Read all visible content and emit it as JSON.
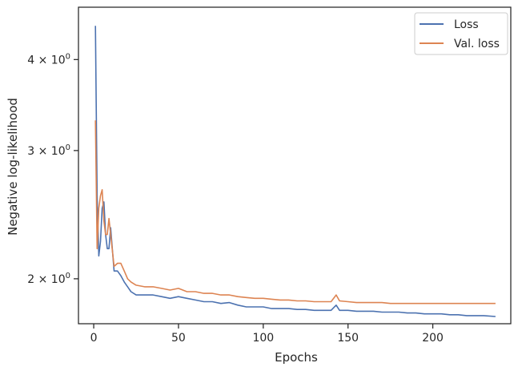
{
  "chart_data": {
    "type": "line",
    "xlabel": "Epochs",
    "ylabel": "Negative log-likelihood",
    "xlim": [
      -9,
      246
    ],
    "ylim": [
      1.735,
      4.72
    ],
    "y_scale": "log",
    "x_ticks": [
      0,
      50,
      100,
      150,
      200
    ],
    "x_tick_labels": [
      "0",
      "50",
      "100",
      "150",
      "200"
    ],
    "y_ticks": [
      {
        "value": 4,
        "mantissa": "4",
        "base": "10",
        "exponent": "0"
      },
      {
        "value": 3,
        "mantissa": "3",
        "base": "10",
        "exponent": "0"
      },
      {
        "value": 2,
        "mantissa": "2",
        "base": "10",
        "exponent": "0"
      }
    ],
    "grid": false,
    "legend_position": "top-right",
    "colors": {
      "loss": "#4c72b0",
      "val_loss": "#dd8452",
      "axes": "#262626"
    },
    "series": [
      {
        "name": "Loss",
        "color": "#4c72b0",
        "x": [
          1,
          2,
          3,
          4,
          5,
          6,
          7,
          8,
          9,
          10,
          12,
          14,
          16,
          18,
          20,
          22,
          25,
          30,
          35,
          40,
          45,
          50,
          55,
          60,
          65,
          70,
          75,
          80,
          85,
          90,
          95,
          100,
          105,
          110,
          115,
          120,
          125,
          130,
          135,
          140,
          143,
          145,
          150,
          155,
          160,
          165,
          170,
          175,
          180,
          185,
          190,
          195,
          200,
          205,
          210,
          215,
          220,
          225,
          230,
          237
        ],
        "y": [
          4.45,
          2.6,
          2.15,
          2.25,
          2.5,
          2.55,
          2.3,
          2.2,
          2.2,
          2.35,
          2.05,
          2.05,
          2.02,
          1.98,
          1.95,
          1.92,
          1.9,
          1.9,
          1.9,
          1.89,
          1.88,
          1.89,
          1.88,
          1.87,
          1.86,
          1.86,
          1.85,
          1.855,
          1.84,
          1.83,
          1.83,
          1.83,
          1.82,
          1.82,
          1.82,
          1.815,
          1.815,
          1.81,
          1.81,
          1.81,
          1.84,
          1.81,
          1.81,
          1.805,
          1.805,
          1.805,
          1.8,
          1.8,
          1.8,
          1.795,
          1.795,
          1.79,
          1.79,
          1.79,
          1.785,
          1.785,
          1.78,
          1.78,
          1.78,
          1.775
        ]
      },
      {
        "name": "Val. loss",
        "color": "#dd8452",
        "x": [
          1,
          2,
          3,
          4,
          5,
          6,
          7,
          8,
          9,
          10,
          12,
          14,
          16,
          18,
          20,
          22,
          25,
          30,
          35,
          40,
          45,
          50,
          55,
          60,
          65,
          70,
          75,
          80,
          85,
          90,
          95,
          100,
          105,
          110,
          115,
          120,
          125,
          130,
          135,
          140,
          143,
          145,
          150,
          155,
          160,
          165,
          170,
          175,
          180,
          185,
          190,
          195,
          200,
          205,
          210,
          215,
          220,
          225,
          230,
          237
        ],
        "y": [
          3.3,
          2.2,
          2.5,
          2.6,
          2.65,
          2.4,
          2.3,
          2.3,
          2.42,
          2.3,
          2.08,
          2.1,
          2.1,
          2.05,
          2.0,
          1.98,
          1.96,
          1.95,
          1.95,
          1.94,
          1.93,
          1.94,
          1.92,
          1.92,
          1.91,
          1.91,
          1.9,
          1.9,
          1.89,
          1.885,
          1.88,
          1.88,
          1.875,
          1.87,
          1.87,
          1.865,
          1.865,
          1.86,
          1.86,
          1.86,
          1.9,
          1.865,
          1.86,
          1.855,
          1.855,
          1.855,
          1.855,
          1.85,
          1.85,
          1.85,
          1.85,
          1.85,
          1.85,
          1.85,
          1.85,
          1.85,
          1.85,
          1.85,
          1.85,
          1.85
        ]
      }
    ]
  }
}
